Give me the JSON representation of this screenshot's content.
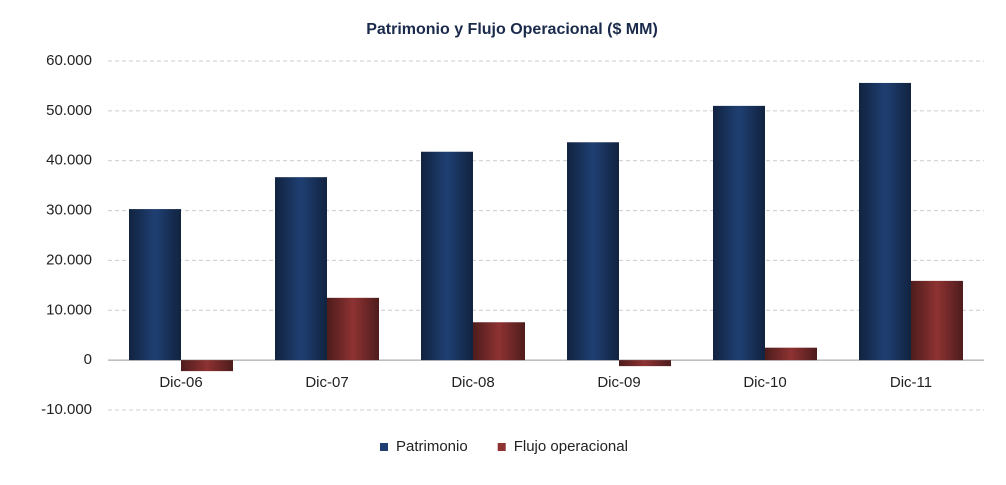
{
  "chart_data": {
    "type": "bar",
    "title": "Patrimonio y Flujo Operacional ($ MM)",
    "categories": [
      "Dic-06",
      "Dic-07",
      "Dic-08",
      "Dic-09",
      "Dic-10",
      "Dic-11"
    ],
    "series": [
      {
        "name": "Patrimonio",
        "color": "#1f3f73",
        "values": [
          30300,
          36700,
          41800,
          43700,
          51000,
          55600
        ]
      },
      {
        "name": "Flujo operacional",
        "color": "#8e3232",
        "values": [
          -2200,
          12500,
          7600,
          -1200,
          2500,
          15900
        ]
      }
    ],
    "ylim": [
      -10000,
      60000
    ],
    "yticks": [
      {
        "value": -10000,
        "label": "-10.000"
      },
      0,
      {
        "value": 10000,
        "label": "10.000"
      },
      {
        "value": 20000,
        "label": "20.000"
      },
      {
        "value": 30000,
        "label": "30.000"
      },
      {
        "value": 40000,
        "label": "40.000"
      },
      {
        "value": 50000,
        "label": "50.000"
      },
      {
        "value": 60000,
        "label": "60.000"
      }
    ],
    "grid": true,
    "legend": "bottom"
  }
}
